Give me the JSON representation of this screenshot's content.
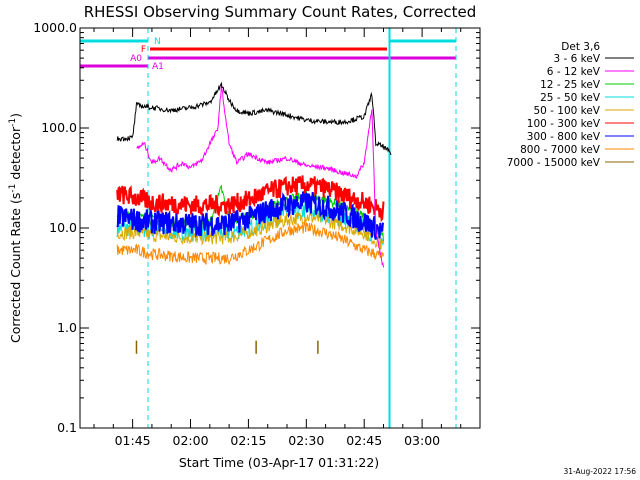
{
  "chart_data": {
    "type": "line",
    "title": "RHESSI Observing Summary Count Rates, Corrected",
    "xlabel": "Start Time (03-Apr-17 01:31:22)",
    "ylabel_main": "Corrected Count Rate (s",
    "ylabel_exp1": "-1",
    "ylabel_mid": " detector",
    "ylabel_exp2": "-1",
    "ylabel_end": ")",
    "y_scale": "log",
    "ylim": [
      0.1,
      1000
    ],
    "xlim": [
      "01:31:22",
      "03:15:00"
    ],
    "y_ticks": [
      "0.1",
      "1.0",
      "10.0",
      "100.0",
      "1000.0"
    ],
    "x_ticks": [
      "01:45",
      "02:00",
      "02:15",
      "02:30",
      "02:45",
      "03:00"
    ],
    "legend_title": "Det 3,6",
    "legend_placement": "right",
    "series": [
      {
        "name": "3 - 6 keV",
        "color": "#000000",
        "x": [
          "01:41",
          "01:45",
          "01:46",
          "01:50",
          "01:55",
          "02:00",
          "02:05",
          "02:08",
          "02:10",
          "02:12",
          "02:15",
          "02:20",
          "02:25",
          "02:30",
          "02:35",
          "02:40",
          "02:45",
          "02:47",
          "02:48",
          "02:50",
          "02:52"
        ],
        "values": [
          78,
          80,
          170,
          160,
          150,
          160,
          180,
          270,
          190,
          150,
          140,
          150,
          135,
          120,
          115,
          115,
          130,
          220,
          70,
          65,
          55
        ]
      },
      {
        "name": "6 - 12 keV",
        "color": "#ff00ff",
        "x": [
          "01:46",
          "01:48",
          "01:50",
          "01:52",
          "01:55",
          "01:58",
          "02:00",
          "02:03",
          "02:05",
          "02:07",
          "02:08",
          "02:10",
          "02:12",
          "02:15",
          "02:20",
          "02:25",
          "02:30",
          "02:35",
          "02:40",
          "02:43",
          "02:45",
          "02:47",
          "02:48",
          "02:50"
        ],
        "values": [
          62,
          70,
          45,
          50,
          38,
          45,
          40,
          48,
          70,
          95,
          260,
          70,
          45,
          55,
          45,
          50,
          42,
          40,
          35,
          33,
          45,
          160,
          9,
          4
        ]
      },
      {
        "name": "12 - 25 keV",
        "color": "#00cc00",
        "x": [
          "01:41",
          "01:46",
          "01:50",
          "02:00",
          "02:05",
          "02:08",
          "02:10",
          "02:15",
          "02:20",
          "02:25",
          "02:30",
          "02:35",
          "02:40",
          "02:45",
          "02:48",
          "02:50"
        ],
        "values": [
          14,
          13,
          12,
          11,
          11,
          25,
          12,
          13,
          16,
          19,
          21,
          19,
          16,
          13,
          10,
          8
        ]
      },
      {
        "name": "25 - 50 keV",
        "color": "#00dddd",
        "x": [
          "01:41",
          "01:46",
          "01:50",
          "02:00",
          "02:10",
          "02:15",
          "02:20",
          "02:25",
          "02:30",
          "02:35",
          "02:40",
          "02:45",
          "02:48",
          "02:50"
        ],
        "values": [
          10,
          10,
          9.5,
          9,
          9,
          10,
          12,
          14,
          15,
          14,
          12,
          10,
          8,
          7
        ]
      },
      {
        "name": "50 - 100 keV",
        "color": "#ddaa00",
        "x": [
          "01:41",
          "01:46",
          "01:50",
          "02:00",
          "02:10",
          "02:15",
          "02:20",
          "02:25",
          "02:30",
          "02:35",
          "02:40",
          "02:45",
          "02:48",
          "02:50"
        ],
        "values": [
          9,
          9,
          8.5,
          8,
          8,
          9,
          10.5,
          12,
          13,
          12,
          10.5,
          9,
          7.5,
          6.5
        ]
      },
      {
        "name": "100 - 300 keV",
        "color": "#ff0000",
        "x": [
          "01:41",
          "01:46",
          "01:50",
          "02:00",
          "02:10",
          "02:15",
          "02:20",
          "02:25",
          "02:30",
          "02:35",
          "02:40",
          "02:45",
          "02:48",
          "02:50"
        ],
        "values": [
          22,
          20,
          18,
          17,
          17,
          19,
          23,
          26,
          27,
          25,
          21,
          18,
          16,
          15
        ]
      },
      {
        "name": "300 - 800 keV",
        "color": "#0000ff",
        "x": [
          "01:41",
          "01:46",
          "01:50",
          "02:00",
          "02:10",
          "02:15",
          "02:20",
          "02:25",
          "02:30",
          "02:35",
          "02:40",
          "02:45",
          "02:48",
          "02:50"
        ],
        "values": [
          13,
          12,
          11.5,
          11,
          11,
          12.5,
          15,
          17,
          18,
          16.5,
          14,
          11.5,
          10,
          9
        ]
      },
      {
        "name": "800 - 7000 keV",
        "color": "#ff8800",
        "x": [
          "01:41",
          "01:46",
          "01:50",
          "02:00",
          "02:10",
          "02:15",
          "02:20",
          "02:25",
          "02:30",
          "02:35",
          "02:40",
          "02:45",
          "02:48",
          "02:50"
        ],
        "values": [
          6,
          6,
          5.5,
          5,
          5,
          6,
          7.5,
          9.5,
          10,
          9,
          7.5,
          6,
          5.5,
          5
        ]
      },
      {
        "name": "7000 - 15000 keV",
        "color": "#886600",
        "x": [
          "01:46",
          "02:17",
          "02:33"
        ],
        "values": [
          0.65,
          0.65,
          0.65
        ]
      }
    ],
    "annotations": [
      {
        "label": "N",
        "color": "#00dddd"
      },
      {
        "label": "F",
        "color": "#ff0000"
      },
      {
        "label": "A0",
        "color": "#dd00dd"
      },
      {
        "label": "A1",
        "color": "#dd00dd"
      }
    ],
    "timestamp": "31-Aug-2022 17:56"
  }
}
